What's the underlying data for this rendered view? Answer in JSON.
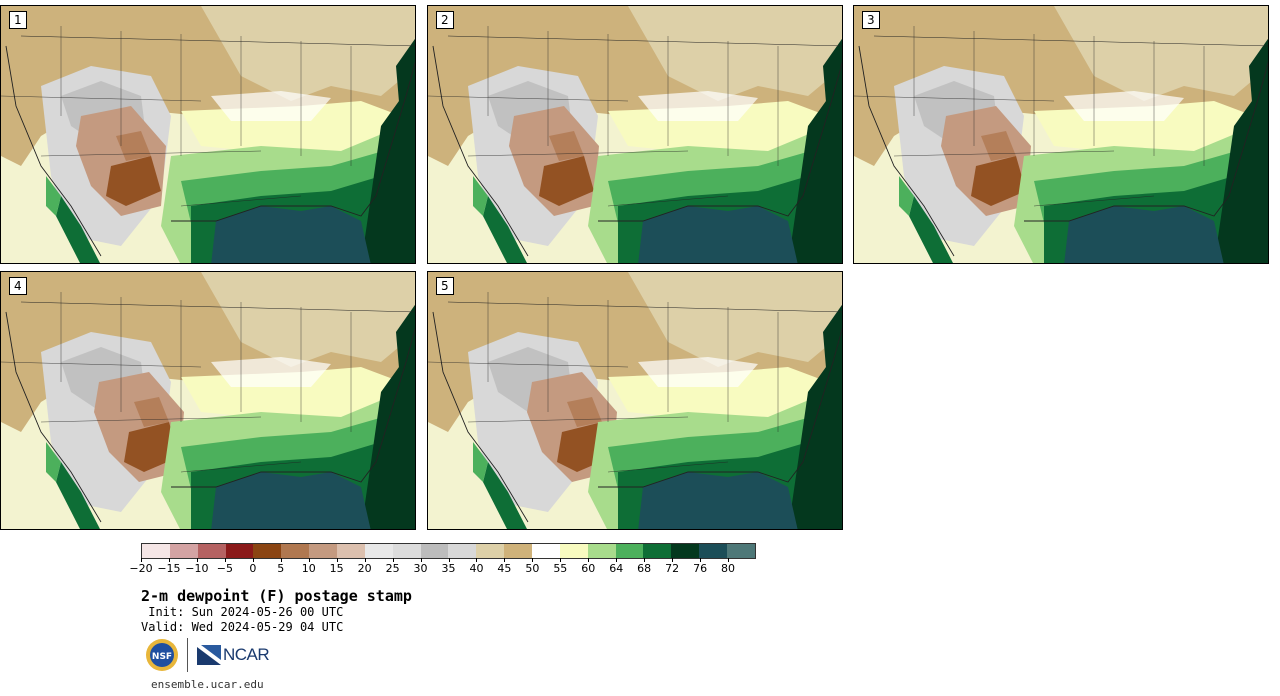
{
  "panels": [
    {
      "label": "1"
    },
    {
      "label": "2"
    },
    {
      "label": "3"
    },
    {
      "label": "4"
    },
    {
      "label": "5"
    }
  ],
  "colorbar": {
    "colors": [
      "#f5e6e6",
      "#d4a3a3",
      "#b56262",
      "#8b1a1a",
      "#8b4513",
      "#b07850",
      "#c49a80",
      "#dcc0ae",
      "#e8e8e8",
      "#dcdcdc",
      "#bcbcbc",
      "#d8d8d8",
      "#ddd0a8",
      "#cfb27a",
      "#ffffff",
      "#f8fbc0",
      "#a8dc8c",
      "#4cb05c",
      "#0e6e36",
      "#04381e",
      "#1c4e58",
      "#4e7878"
    ],
    "ticks": [
      "−20",
      "−15",
      "−10",
      "−5",
      "0",
      "5",
      "10",
      "15",
      "20",
      "25",
      "30",
      "35",
      "40",
      "45",
      "50",
      "55",
      "60",
      "64",
      "68",
      "72",
      "76",
      "80"
    ]
  },
  "title": "2-m dewpoint (F) postage stamp",
  "init": " Init: Sun 2024-05-26 00 UTC",
  "valid": "Valid: Wed 2024-05-29 04 UTC",
  "logos": {
    "nsf": "NSF",
    "ncar": "NCAR"
  },
  "site": "ensemble.ucar.edu"
}
